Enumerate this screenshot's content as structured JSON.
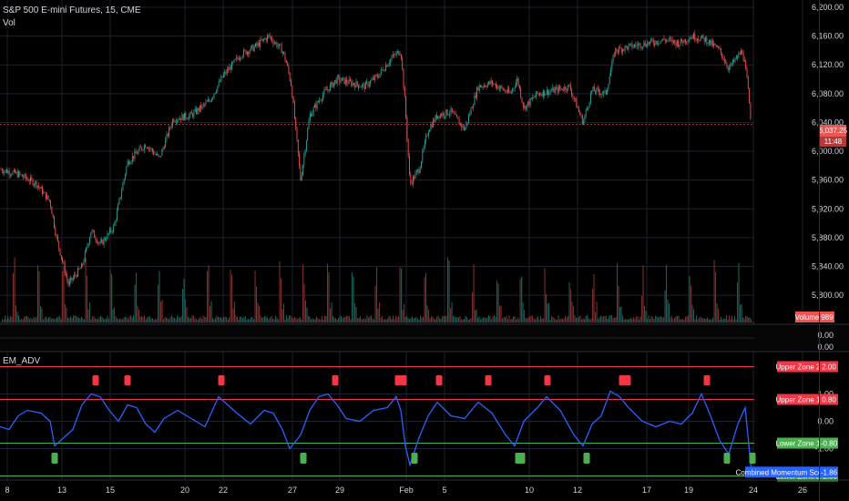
{
  "header": {
    "symbol_title": "S&P 500 E-mini Futures, 15, CME",
    "volume_label": "Vol",
    "indicator_title": "EM_ADV"
  },
  "colors": {
    "background": "#000000",
    "up_candle": "#26a69a",
    "down_candle": "#ef5350",
    "grid": "#1e222d",
    "text": "#d1d4dc",
    "score_line": "#2962ff",
    "upper_zone": "#f23645",
    "lower_zone": "#4caf50"
  },
  "chart_data": [
    {
      "type": "candlestick",
      "title": "S&P 500 E-mini Futures, 15, CME",
      "y_ticks": [
        "6,200.00",
        "6,160.00",
        "6,120.00",
        "6,080.00",
        "6,040.00",
        "6,000.00",
        "5,960.00",
        "5,920.00",
        "5,880.00",
        "5,840.00",
        "5,800.00"
      ],
      "ylim": [
        5790,
        6200
      ],
      "x_ticks": [
        "8",
        "13",
        "15",
        "20",
        "22",
        "27",
        "29",
        "Feb",
        "5",
        "10",
        "12",
        "17",
        "19",
        "24",
        "26"
      ],
      "price_path": [
        {
          "t": 0,
          "p": 5975
        },
        {
          "t": 20,
          "p": 5968
        },
        {
          "t": 40,
          "p": 5955
        },
        {
          "t": 55,
          "p": 5930
        },
        {
          "t": 62,
          "p": 5880
        },
        {
          "t": 75,
          "p": 5815
        },
        {
          "t": 90,
          "p": 5840
        },
        {
          "t": 100,
          "p": 5890
        },
        {
          "t": 110,
          "p": 5870
        },
        {
          "t": 125,
          "p": 5895
        },
        {
          "t": 140,
          "p": 5985
        },
        {
          "t": 160,
          "p": 6010
        },
        {
          "t": 175,
          "p": 5990
        },
        {
          "t": 190,
          "p": 6045
        },
        {
          "t": 210,
          "p": 6050
        },
        {
          "t": 230,
          "p": 6070
        },
        {
          "t": 245,
          "p": 6105
        },
        {
          "t": 265,
          "p": 6135
        },
        {
          "t": 280,
          "p": 6145
        },
        {
          "t": 295,
          "p": 6160
        },
        {
          "t": 310,
          "p": 6140
        },
        {
          "t": 315,
          "p": 6120
        },
        {
          "t": 320,
          "p": 6090
        },
        {
          "t": 330,
          "p": 5960
        },
        {
          "t": 340,
          "p": 6050
        },
        {
          "t": 355,
          "p": 6080
        },
        {
          "t": 370,
          "p": 6100
        },
        {
          "t": 385,
          "p": 6095
        },
        {
          "t": 400,
          "p": 6090
        },
        {
          "t": 415,
          "p": 6105
        },
        {
          "t": 430,
          "p": 6130
        },
        {
          "t": 440,
          "p": 6140
        },
        {
          "t": 445,
          "p": 6060
        },
        {
          "t": 450,
          "p": 5955
        },
        {
          "t": 460,
          "p": 5975
        },
        {
          "t": 470,
          "p": 6030
        },
        {
          "t": 480,
          "p": 6050
        },
        {
          "t": 495,
          "p": 6055
        },
        {
          "t": 510,
          "p": 6030
        },
        {
          "t": 525,
          "p": 6090
        },
        {
          "t": 540,
          "p": 6095
        },
        {
          "t": 560,
          "p": 6080
        },
        {
          "t": 568,
          "p": 6100
        },
        {
          "t": 575,
          "p": 6060
        },
        {
          "t": 590,
          "p": 6080
        },
        {
          "t": 610,
          "p": 6085
        },
        {
          "t": 625,
          "p": 6090
        },
        {
          "t": 640,
          "p": 6040
        },
        {
          "t": 650,
          "p": 6085
        },
        {
          "t": 665,
          "p": 6080
        },
        {
          "t": 675,
          "p": 6140
        },
        {
          "t": 690,
          "p": 6145
        },
        {
          "t": 710,
          "p": 6150
        },
        {
          "t": 730,
          "p": 6155
        },
        {
          "t": 745,
          "p": 6150
        },
        {
          "t": 760,
          "p": 6160
        },
        {
          "t": 775,
          "p": 6155
        },
        {
          "t": 790,
          "p": 6140
        },
        {
          "t": 800,
          "p": 6115
        },
        {
          "t": 815,
          "p": 6140
        },
        {
          "t": 820,
          "p": 6100
        },
        {
          "t": 825,
          "p": 6035
        }
      ]
    },
    {
      "type": "bar",
      "title": "Volume",
      "last_value": "989",
      "y_ticks": [
        "0.00",
        "0.00"
      ]
    },
    {
      "type": "line",
      "title": "EM_ADV",
      "series": [
        {
          "name": "Combined Momentum Score",
          "last_value": "-1.86",
          "points": [
            [
              0,
              -0.2
            ],
            [
              10,
              -0.3
            ],
            [
              20,
              0.2
            ],
            [
              30,
              0.4
            ],
            [
              45,
              0.3
            ],
            [
              55,
              0.0
            ],
            [
              60,
              -0.9
            ],
            [
              70,
              -0.6
            ],
            [
              80,
              -0.3
            ],
            [
              90,
              0.6
            ],
            [
              100,
              1.0
            ],
            [
              110,
              0.9
            ],
            [
              120,
              0.4
            ],
            [
              130,
              0.0
            ],
            [
              140,
              0.6
            ],
            [
              150,
              0.5
            ],
            [
              160,
              -0.1
            ],
            [
              170,
              -0.4
            ],
            [
              180,
              0.1
            ],
            [
              195,
              0.4
            ],
            [
              210,
              0.1
            ],
            [
              225,
              -0.2
            ],
            [
              240,
              0.9
            ],
            [
              250,
              0.6
            ],
            [
              260,
              0.3
            ],
            [
              275,
              -0.1
            ],
            [
              290,
              0.4
            ],
            [
              300,
              0.3
            ],
            [
              310,
              -0.3
            ],
            [
              318,
              -1.0
            ],
            [
              330,
              -0.5
            ],
            [
              340,
              0.4
            ],
            [
              350,
              0.9
            ],
            [
              360,
              1.0
            ],
            [
              370,
              0.6
            ],
            [
              380,
              0.1
            ],
            [
              395,
              0.0
            ],
            [
              410,
              0.4
            ],
            [
              425,
              0.5
            ],
            [
              435,
              0.9
            ],
            [
              440,
              0.4
            ],
            [
              445,
              -0.9
            ],
            [
              450,
              -1.6
            ],
            [
              460,
              -0.6
            ],
            [
              470,
              0.2
            ],
            [
              480,
              0.7
            ],
            [
              495,
              0.2
            ],
            [
              510,
              0.1
            ],
            [
              525,
              0.7
            ],
            [
              540,
              0.3
            ],
            [
              555,
              -0.5
            ],
            [
              565,
              -0.9
            ],
            [
              575,
              0.0
            ],
            [
              590,
              0.5
            ],
            [
              600,
              0.9
            ],
            [
              615,
              0.4
            ],
            [
              630,
              -0.5
            ],
            [
              640,
              -0.9
            ],
            [
              650,
              -0.1
            ],
            [
              660,
              0.2
            ],
            [
              670,
              1.1
            ],
            [
              680,
              0.9
            ],
            [
              690,
              0.5
            ],
            [
              705,
              0.0
            ],
            [
              720,
              -0.2
            ],
            [
              735,
              0.0
            ],
            [
              748,
              -0.1
            ],
            [
              760,
              0.3
            ],
            [
              770,
              1.0
            ],
            [
              780,
              0.2
            ],
            [
              790,
              -0.7
            ],
            [
              800,
              -1.2
            ],
            [
              810,
              -0.1
            ],
            [
              818,
              0.5
            ],
            [
              825,
              -1.86
            ]
          ]
        }
      ],
      "levels": [
        {
          "name": "Upper Zone 2",
          "value": 2.0,
          "label": "2.00"
        },
        {
          "name": "Upper Zone 1",
          "value": 0.8,
          "label": "0.80"
        },
        {
          "name": "Lower Zone 1",
          "value": -0.8,
          "label": "-0.80"
        },
        {
          "name": "Lower Zone 2",
          "value": -2.0,
          "label": "-2.00"
        }
      ],
      "y_ticks": [
        "1.00",
        "0.00",
        "-1.00"
      ],
      "ylim": [
        -2.15,
        2.25
      ],
      "sell_markers": [
        105,
        140,
        243,
        368,
        437,
        443,
        482,
        536,
        601,
        683,
        689,
        776
      ],
      "buy_markers": [
        60,
        333,
        455,
        569,
        573,
        644,
        798,
        826
      ]
    }
  ],
  "price_badge": {
    "price": "6,037.25",
    "countdown": "11:48"
  }
}
